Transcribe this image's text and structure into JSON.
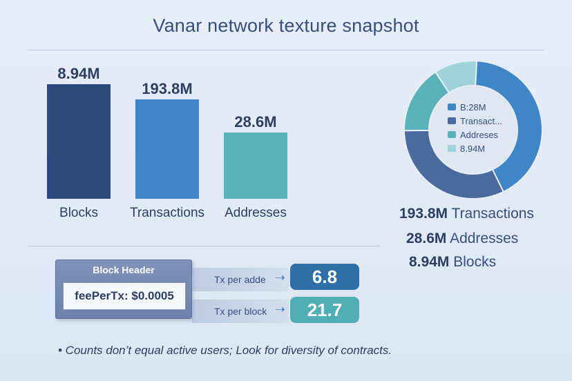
{
  "title": "Vanar network texture snapshot",
  "colors": {
    "blocks": "#2e4a7c",
    "transactions": "#3f86c8",
    "addresses": "#5ab3b8",
    "donut_light": "#9fd3dc",
    "pill_blue": "#2f6fa8",
    "pill_teal": "#50aeb4"
  },
  "chart_data": [
    {
      "type": "bar",
      "categories": [
        "Blocks",
        "Transactions",
        "Addresses"
      ],
      "values": [
        8.94,
        193.8,
        28.6
      ],
      "value_labels": [
        "8.94M",
        "193.8M",
        "28.6M"
      ],
      "unit": "M",
      "title": "",
      "xlabel": "",
      "ylabel": "",
      "grid": false
    },
    {
      "type": "pie",
      "style": "donut",
      "slices": [
        {
          "label": "B:28M",
          "value": 0.42
        },
        {
          "label": "Transact...",
          "value": 0.32
        },
        {
          "label": "Addreses",
          "value": 0.16
        },
        {
          "label": "8.94M",
          "value": 0.1
        }
      ],
      "legend": "center"
    }
  ],
  "summary": [
    {
      "value": "193.8M",
      "label": "Transactions"
    },
    {
      "value": "28.6M",
      "label": "Addresses"
    },
    {
      "value": "8.94M",
      "label": "Blocks"
    }
  ],
  "block_header": {
    "title": "Block Header",
    "field": "feePerTx: $0.0005"
  },
  "ratios": [
    {
      "label": "Tx per adde",
      "value": "6.8"
    },
    {
      "label": "Tx per block",
      "value": "21.7"
    }
  ],
  "footnote": "• Counts don’t equal active users; Look for diversity of contracts."
}
